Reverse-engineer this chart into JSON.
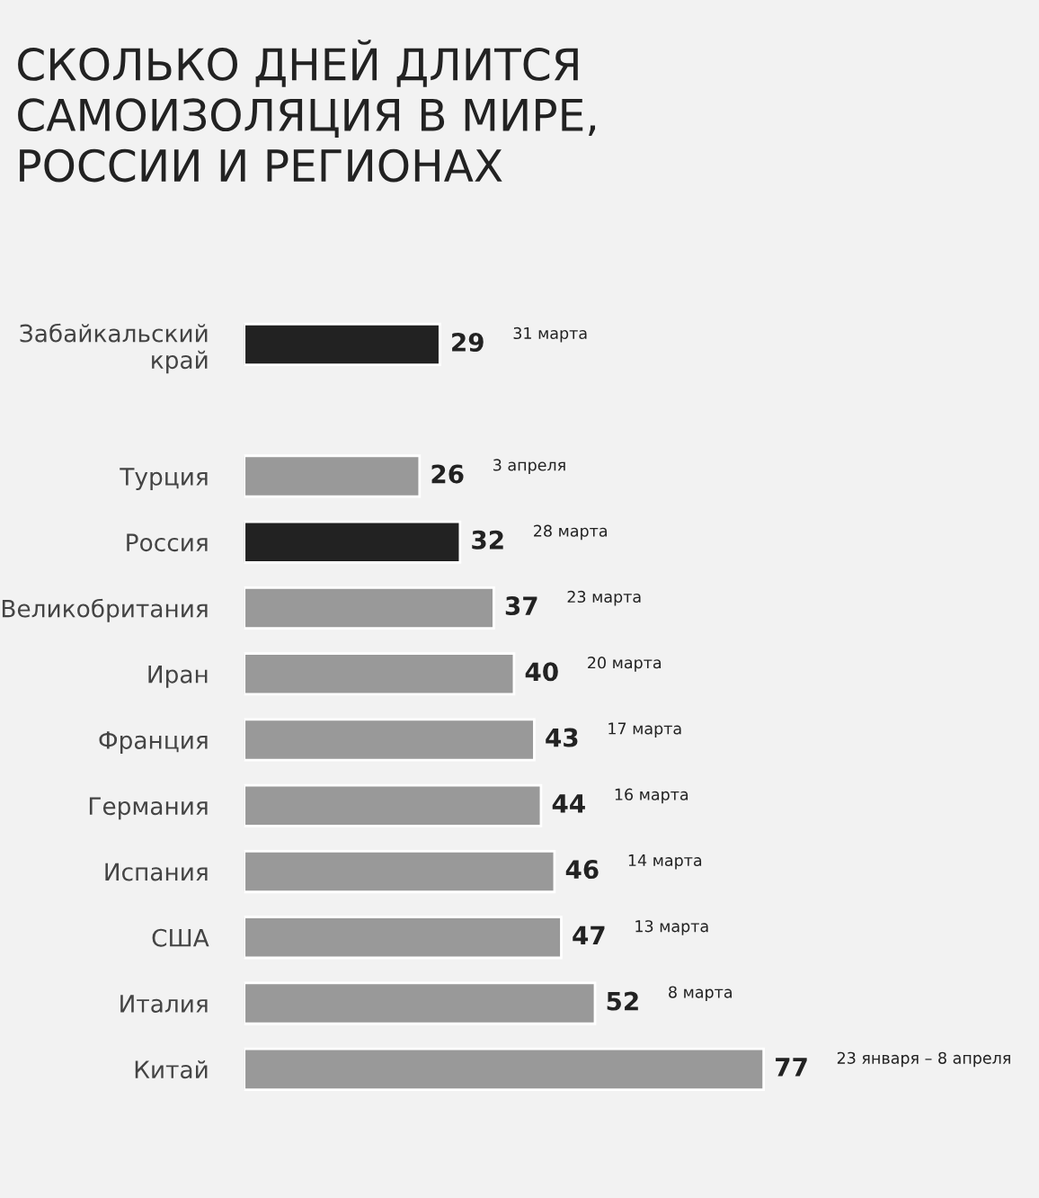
{
  "chart_data": {
    "type": "bar",
    "orientation": "horizontal",
    "title": "СКОЛЬКО ДНЕЙ ДЛИТСЯ\nСАМОИЗОЛЯЦИЯ В МИРЕ,\nРОССИИ И РЕГИОНАХ",
    "categories": [
      "Забайкальский\nкрай",
      null,
      "Турция",
      "Россия",
      "Великобритания",
      "Иран",
      "Франция",
      "Германия",
      "Испания",
      "США",
      "Италия",
      "Китай"
    ],
    "values": [
      29,
      null,
      26,
      32,
      37,
      40,
      43,
      44,
      46,
      47,
      52,
      77
    ],
    "colors": [
      "#222222",
      "#999999",
      "#999999",
      "#222222",
      "#999999",
      "#999999",
      "#999999",
      "#999999",
      "#999999",
      "#999999",
      "#999999",
      "#999999"
    ],
    "data_labels": true,
    "annotations": [
      "31 марта",
      "3 апреля",
      "28 марта",
      "23 марта",
      "20 марта",
      "17 марта",
      "16 марта",
      "14 марта",
      "13 марта",
      "8 марта",
      "23 января – 8 апреля"
    ],
    "grid": false,
    "legend": false
  }
}
